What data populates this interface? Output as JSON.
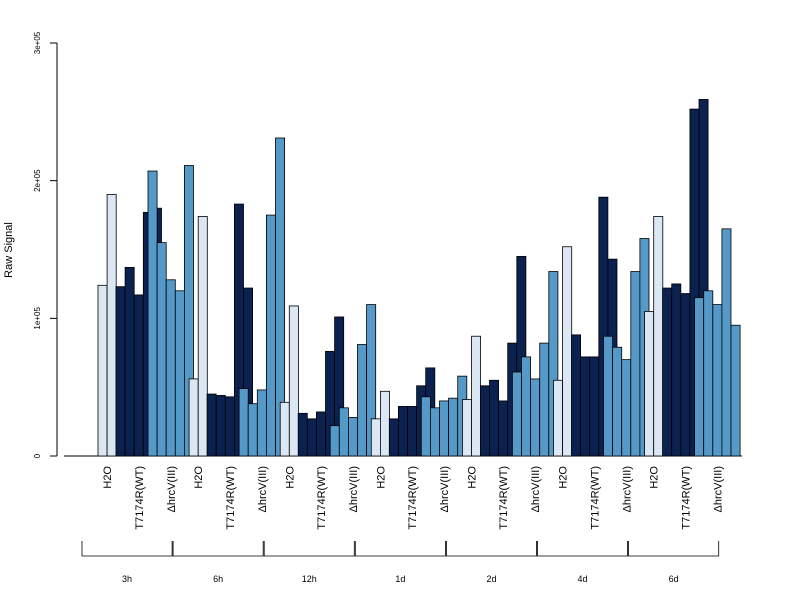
{
  "chart_data": {
    "type": "bar",
    "title": "",
    "xlabel": "",
    "ylabel": "Raw Signal",
    "ylim": [
      0,
      300000
    ],
    "y_ticks": [
      {
        "value": 0,
        "label": "0"
      },
      {
        "value": 100000,
        "label": "1e+05"
      },
      {
        "value": 200000,
        "label": "2e+05"
      },
      {
        "value": 300000,
        "label": "3e+05"
      }
    ],
    "sample_labels": [
      "H2O",
      "T7174R(WT)",
      "ΔhrcV(III)"
    ],
    "sample_colors": [
      "#dbe8f4",
      "#0b2150",
      "#5599c8"
    ],
    "bar_border_color": "#000000",
    "groups": [
      {
        "label": "3h",
        "samples": [
          {
            "name": "H2O",
            "values": [
              124000,
              190000
            ]
          },
          {
            "name": "T7174R(WT)",
            "values": [
              123000,
              137000,
              117000,
              177000,
              180000
            ]
          },
          {
            "name": "ΔhrcV(III)",
            "values": [
              207000,
              155000,
              128000,
              120000,
              211000
            ]
          }
        ]
      },
      {
        "label": "6h",
        "samples": [
          {
            "name": "H2O",
            "values": [
              56000,
              174000
            ]
          },
          {
            "name": "T7174R(WT)",
            "values": [
              45000,
              44000,
              43000,
              183000,
              122000
            ]
          },
          {
            "name": "ΔhrcV(III)",
            "values": [
              49000,
              38000,
              48000,
              175000,
              231000
            ]
          }
        ]
      },
      {
        "label": "12h",
        "samples": [
          {
            "name": "H2O",
            "values": [
              39000,
              109000
            ]
          },
          {
            "name": "T7174R(WT)",
            "values": [
              31000,
              27000,
              32000,
              76000,
              101000
            ]
          },
          {
            "name": "ΔhrcV(III)",
            "values": [
              22000,
              35000,
              28000,
              81000,
              110000
            ]
          }
        ]
      },
      {
        "label": "1d",
        "samples": [
          {
            "name": "H2O",
            "values": [
              27000,
              47000
            ]
          },
          {
            "name": "T7174R(WT)",
            "values": [
              27000,
              36000,
              36000,
              51000,
              64000
            ]
          },
          {
            "name": "ΔhrcV(III)",
            "values": [
              43000,
              35000,
              40000,
              42000,
              58000
            ]
          }
        ]
      },
      {
        "label": "2d",
        "samples": [
          {
            "name": "H2O",
            "values": [
              41000,
              87000
            ]
          },
          {
            "name": "T7174R(WT)",
            "values": [
              51000,
              55000,
              40000,
              82000,
              145000
            ]
          },
          {
            "name": "ΔhrcV(III)",
            "values": [
              61000,
              72000,
              56000,
              82000,
              134000
            ]
          }
        ]
      },
      {
        "label": "4d",
        "samples": [
          {
            "name": "H2O",
            "values": [
              55000,
              152000
            ]
          },
          {
            "name": "T7174R(WT)",
            "values": [
              88000,
              72000,
              72000,
              188000,
              143000
            ]
          },
          {
            "name": "ΔhrcV(III)",
            "values": [
              87000,
              79000,
              70000,
              134000,
              158000
            ]
          }
        ]
      },
      {
        "label": "6d",
        "samples": [
          {
            "name": "H2O",
            "values": [
              105000,
              174000
            ]
          },
          {
            "name": "T7174R(WT)",
            "values": [
              122000,
              125000,
              118000,
              252000,
              259000
            ]
          },
          {
            "name": "ΔhrcV(III)",
            "values": [
              115000,
              120000,
              110000,
              165000,
              95000
            ]
          }
        ]
      }
    ]
  }
}
